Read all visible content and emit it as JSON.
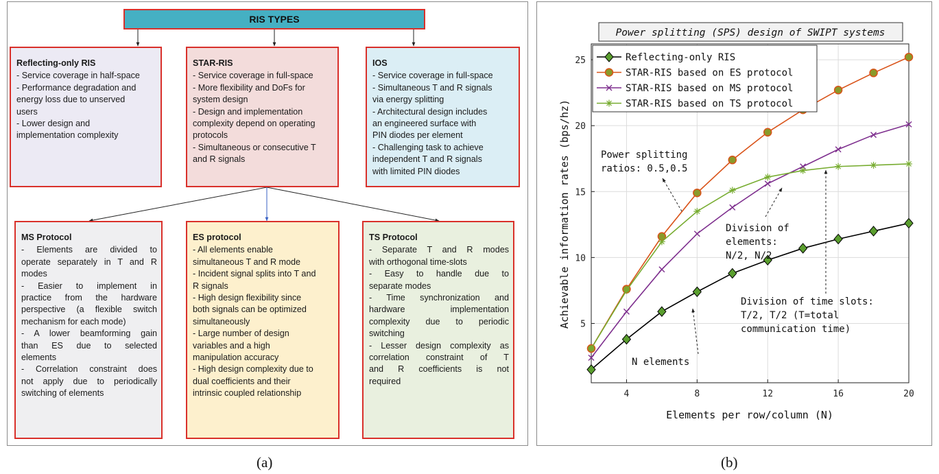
{
  "panel_a": {
    "caption": "(a)",
    "root": "RIS TYPES",
    "top_boxes": [
      {
        "title": "Reflecting-only RIS",
        "lines": [
          "- Service coverage in half-space",
          "- Performance degradation and",
          "energy loss due to unserved",
          "users",
          "- Lower design and",
          "implementation complexity"
        ],
        "fill": "#eceaf4"
      },
      {
        "title": "STAR-RIS",
        "lines": [
          "- Service coverage in full-space",
          "- More flexibility and DoFs for",
          "system design",
          "- Design and implementation",
          "complexity depend on operating",
          "protocols",
          "- Simultaneous or consecutive T",
          "and R signals"
        ],
        "fill": "#f3dcdb"
      },
      {
        "title": "IOS",
        "lines": [
          "- Service coverage in full-space",
          "- Simultaneous T and R signals",
          "via energy splitting",
          "- Architectural design includes",
          "an engineered surface with",
          "PIN diodes per element",
          "- Challenging task to achieve",
          "independent T and R signals",
          "with limited PIN diodes"
        ],
        "fill": "#dbeef5"
      }
    ],
    "bottom_boxes": [
      {
        "title": "MS Protocol",
        "lines": [
          "- Elements are divided to",
          "operate separately in T and R",
          "modes",
          "- Easier to implement in",
          "practice from the hardware",
          "perspective (a flexible switch",
          "mechanism for each mode)",
          "- A lower beamforming gain",
          "than ES due to selected",
          "elements",
          "- Correlation constraint does",
          "not apply due to periodically",
          "switching of elements"
        ],
        "fill": "#efeff1"
      },
      {
        "title": "ES protocol",
        "lines": [
          "- All elements enable",
          "simultaneous T and R mode",
          "- Incident signal splits into T and",
          "R signals",
          "- High design flexibility since",
          "both signals can be optimized",
          "simultaneously",
          "- Large number of design",
          "variables and a high",
          "manipulation accuracy",
          "- High design complexity due to",
          "dual coefficients and their",
          "intrinsic coupled relationship"
        ],
        "fill": "#fdf0cd"
      },
      {
        "title": "TS Protocol",
        "lines": [
          "- Separate T and R modes",
          "with orthogonal time-slots",
          "- Easy to handle due to",
          "separate modes",
          "- Time synchronization and",
          "hardware implementation",
          "complexity due to periodic",
          "switching",
          "- Lesser design complexity as",
          "correlation constraint of T",
          "and R coefficients is not",
          "required"
        ],
        "fill": "#e9f0df"
      }
    ]
  },
  "panel_b": {
    "caption": "(b)",
    "annotations": {
      "power": [
        "Power splitting",
        "ratios: 0.5,0.5"
      ],
      "division_elements": [
        "Division of",
        "elements:",
        "N/2, N/2"
      ],
      "division_time": [
        "Division of time slots:",
        "T/2, T/2 (T=total",
        "communication time)"
      ],
      "n_elements": "N elements"
    }
  },
  "chart_data": {
    "type": "line",
    "title": "Power splitting (SPS) design of SWIPT systems",
    "xlabel": "Elements per row/column (N)",
    "ylabel": "Achievable information rates (bps/hz)",
    "xlim": [
      2,
      20
    ],
    "ylim": [
      0.5,
      26.2
    ],
    "xticks": [
      4,
      8,
      12,
      16,
      20
    ],
    "yticks": [
      5,
      10,
      15,
      20,
      25
    ],
    "grid": true,
    "legend_position": "top-left",
    "x": [
      2,
      4,
      6,
      8,
      10,
      12,
      14,
      16,
      18,
      20
    ],
    "series": [
      {
        "name": "Reflecting-only RIS",
        "color": "#000000",
        "marker": "diamond",
        "marker_fill": "#5a9e2e",
        "values": [
          1.5,
          3.8,
          5.9,
          7.4,
          8.8,
          9.8,
          10.7,
          11.4,
          12.0,
          12.6
        ]
      },
      {
        "name": "STAR-RIS based on ES protocol",
        "color": "#d95319",
        "marker": "circle",
        "marker_fill": "#8a9a2a",
        "values": [
          3.1,
          7.6,
          11.6,
          14.9,
          17.4,
          19.5,
          21.2,
          22.7,
          24.0,
          25.2
        ]
      },
      {
        "name": "STAR-RIS based on MS protocol",
        "color": "#7e2f8e",
        "marker": "x",
        "values": [
          2.4,
          5.9,
          9.1,
          11.8,
          13.8,
          15.6,
          16.9,
          18.2,
          19.3,
          20.1
        ]
      },
      {
        "name": "STAR-RIS based on TS protocol",
        "color": "#77ac30",
        "marker": "star",
        "values": [
          3.1,
          7.5,
          11.2,
          13.5,
          15.1,
          16.1,
          16.6,
          16.9,
          17.0,
          17.1
        ]
      }
    ]
  }
}
